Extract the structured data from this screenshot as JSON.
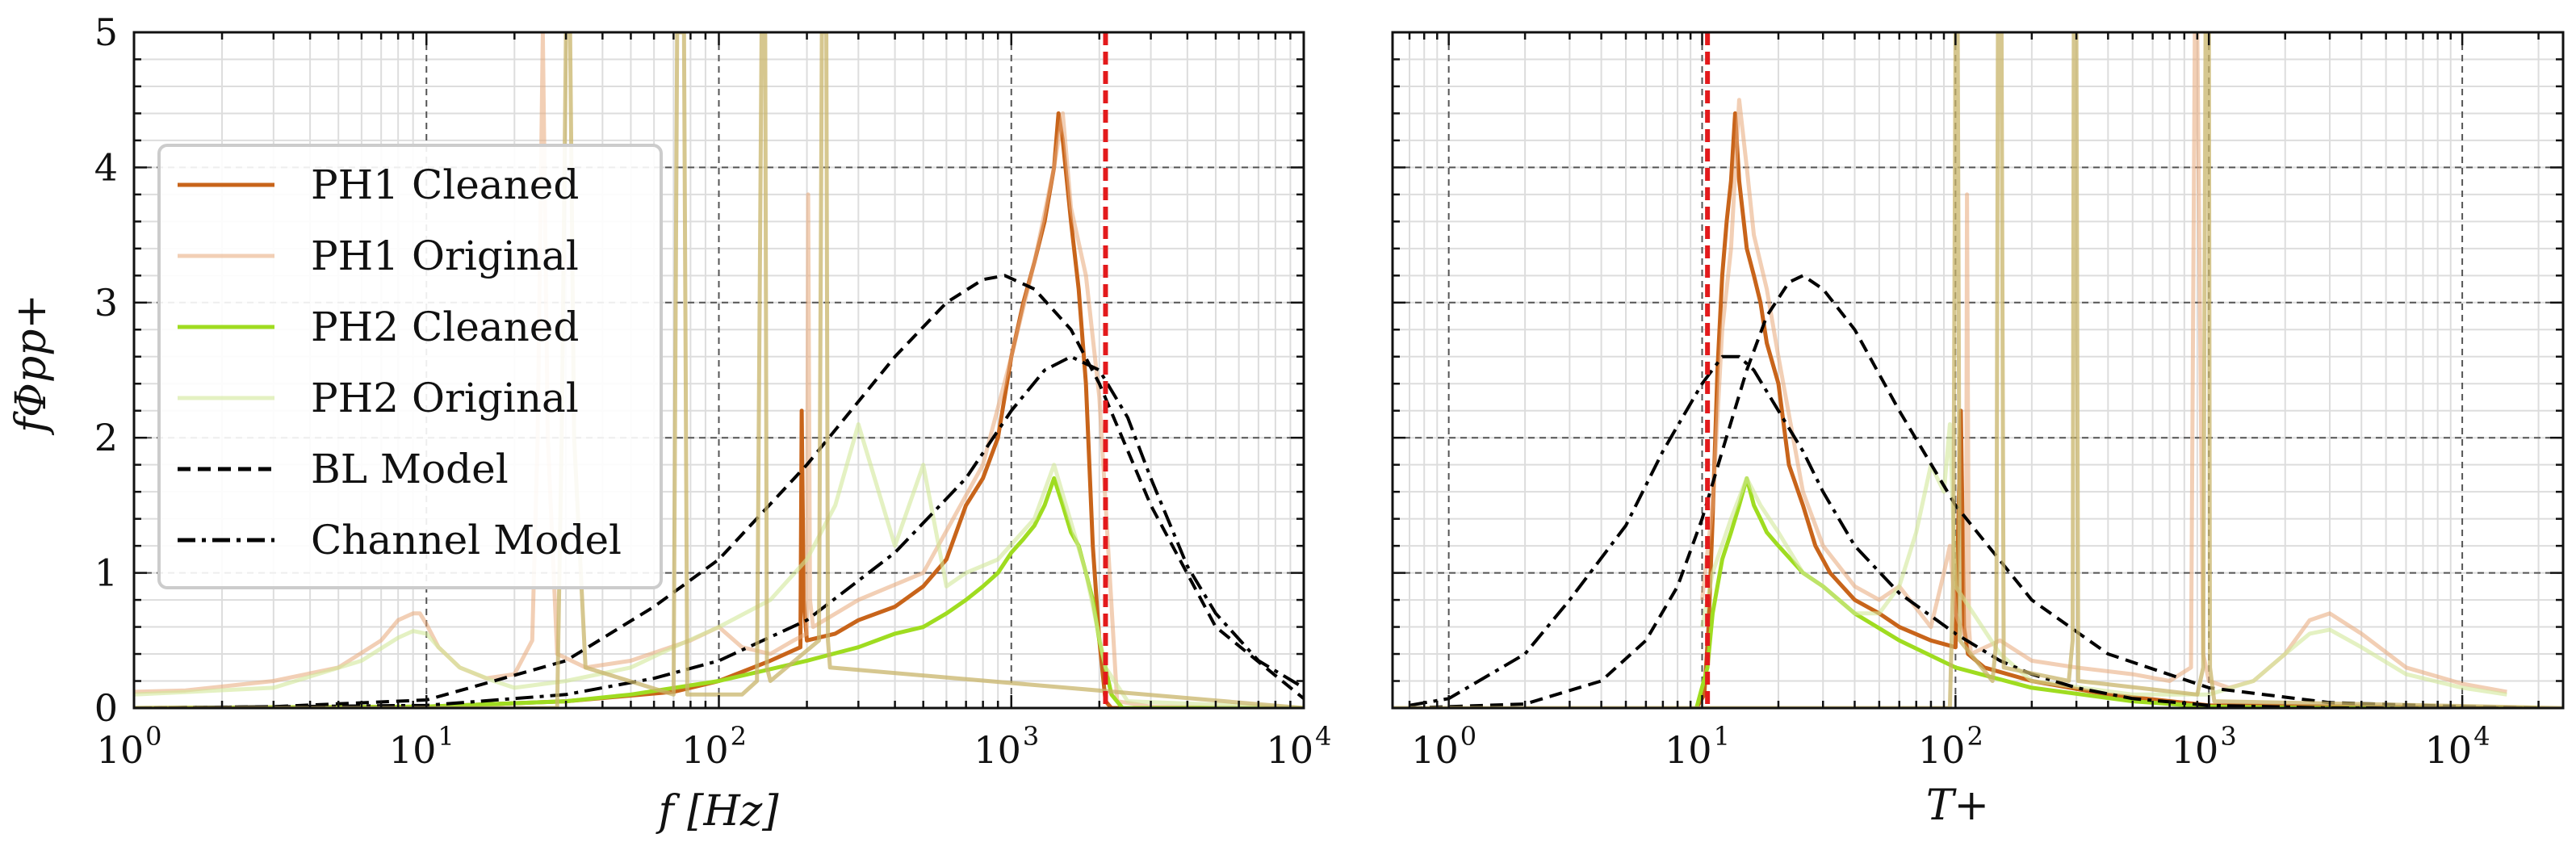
{
  "chart_data": [
    {
      "type": "line",
      "xscale": "log",
      "xlim": [
        1,
        10000
      ],
      "ylim": [
        0,
        5
      ],
      "xlabel": "f [Hz]",
      "ylabel": "fΦpp+",
      "xticks": [
        1,
        10,
        100,
        1000,
        10000
      ],
      "yticks": [
        0,
        1,
        2,
        3,
        4,
        5
      ],
      "grid": true,
      "cutoff_line": {
        "x": 2100,
        "color": "#e31a1c",
        "style": "dashed"
      },
      "legend": {
        "position": "left",
        "entries": [
          "PH1 Cleaned",
          "PH1 Original",
          "PH2 Cleaned",
          "PH2 Original",
          "BL Model",
          "Channel Model"
        ]
      },
      "series": [
        {
          "name": "PH1 Cleaned",
          "color": "#c8641a",
          "width": 5,
          "x": [
            1,
            10,
            30,
            70,
            100,
            150,
            190,
            192,
            195,
            200,
            250,
            300,
            400,
            500,
            600,
            700,
            800,
            900,
            1000,
            1100,
            1200,
            1300,
            1400,
            1450,
            1500,
            1600,
            1700,
            1800,
            1900,
            2000,
            2100,
            2200,
            2500,
            10000
          ],
          "y": [
            0,
            0.01,
            0.05,
            0.12,
            0.2,
            0.35,
            0.45,
            2.2,
            0.8,
            0.5,
            0.55,
            0.65,
            0.75,
            0.9,
            1.1,
            1.5,
            1.7,
            2.0,
            2.6,
            3.0,
            3.3,
            3.6,
            4.0,
            4.4,
            4.2,
            3.6,
            3.1,
            2.4,
            1.2,
            0.5,
            0.05,
            0.0,
            0.0,
            0.0
          ]
        },
        {
          "name": "PH1 Original",
          "color": "#e8a878",
          "width": 5,
          "opacity": 0.55,
          "x": [
            1,
            1.5,
            3,
            5,
            7,
            8,
            9,
            9.5,
            10,
            11,
            13,
            16,
            20,
            23,
            24,
            25,
            26,
            28,
            35,
            50,
            80,
            100,
            120,
            150,
            180,
            200,
            202,
            205,
            210,
            300,
            500,
            800,
            1000,
            1200,
            1400,
            1500,
            1600,
            1800,
            2000,
            2300,
            3000,
            10000
          ],
          "y": [
            0.12,
            0.13,
            0.2,
            0.3,
            0.5,
            0.65,
            0.7,
            0.7,
            0.62,
            0.45,
            0.3,
            0.22,
            0.25,
            0.5,
            2.0,
            5.0,
            2.0,
            0.4,
            0.3,
            0.35,
            0.5,
            0.6,
            0.45,
            0.4,
            0.5,
            0.55,
            3.8,
            0.8,
            0.6,
            0.8,
            1.0,
            1.8,
            2.6,
            3.3,
            4.0,
            4.4,
            3.7,
            3.2,
            2.3,
            0.05,
            0.01,
            0.0
          ]
        },
        {
          "name": "PH2 Cleaned",
          "color": "#9fdc20",
          "width": 5,
          "x": [
            1,
            10,
            30,
            50,
            100,
            200,
            300,
            400,
            500,
            600,
            700,
            800,
            900,
            1000,
            1100,
            1200,
            1300,
            1400,
            1500,
            1600,
            1700,
            1800,
            1900,
            2000,
            2100,
            2200,
            2400,
            10000
          ],
          "y": [
            0.0,
            0.01,
            0.05,
            0.1,
            0.2,
            0.35,
            0.45,
            0.55,
            0.6,
            0.7,
            0.8,
            0.9,
            1.0,
            1.15,
            1.25,
            1.35,
            1.5,
            1.7,
            1.5,
            1.3,
            1.2,
            1.0,
            0.8,
            0.5,
            0.3,
            0.1,
            0.0,
            0.0
          ]
        },
        {
          "name": "PH2 Original",
          "color": "#d2e89a",
          "width": 5,
          "opacity": 0.6,
          "x": [
            1,
            3,
            6,
            8,
            9,
            10,
            11,
            13,
            17,
            20,
            30,
            50,
            70,
            100,
            150,
            200,
            250,
            300,
            400,
            500,
            600,
            700,
            900,
            1200,
            1400,
            1800,
            2100,
            2500,
            10000
          ],
          "y": [
            0.1,
            0.15,
            0.35,
            0.52,
            0.57,
            0.55,
            0.45,
            0.3,
            0.2,
            0.15,
            0.2,
            0.3,
            0.45,
            0.6,
            0.8,
            1.1,
            1.5,
            2.1,
            1.2,
            1.8,
            0.9,
            1.0,
            1.1,
            1.4,
            1.8,
            1.0,
            0.3,
            0.05,
            0.0
          ]
        },
        {
          "name": "BL Model",
          "color": "#000000",
          "width": 4,
          "dash": "dashed",
          "x": [
            1,
            3,
            10,
            30,
            60,
            100,
            200,
            400,
            600,
            800,
            950,
            1200,
            1600,
            2000,
            3000,
            5000,
            10000
          ],
          "y": [
            0.0,
            0.01,
            0.06,
            0.35,
            0.75,
            1.1,
            1.8,
            2.6,
            3.0,
            3.17,
            3.2,
            3.1,
            2.8,
            2.4,
            1.5,
            0.6,
            0.07
          ]
        },
        {
          "name": "Channel Model",
          "color": "#000000",
          "width": 4,
          "dash": "dashdot",
          "x": [
            1,
            10,
            30,
            60,
            100,
            200,
            400,
            700,
            1000,
            1300,
            1600,
            2000,
            2500,
            3000,
            4000,
            5000,
            7000,
            10000
          ],
          "y": [
            0.0,
            0.02,
            0.1,
            0.22,
            0.35,
            0.65,
            1.15,
            1.7,
            2.2,
            2.5,
            2.6,
            2.5,
            2.15,
            1.7,
            1.05,
            0.7,
            0.35,
            0.15
          ]
        },
        {
          "name": "",
          "color": "#c8b46a",
          "width": 5,
          "opacity": 0.75,
          "x": [
            1,
            28,
            29,
            30,
            31,
            32,
            35,
            70,
            72,
            74,
            75,
            76,
            78,
            120,
            135,
            140,
            142,
            144,
            146,
            150,
            220,
            225,
            230,
            233,
            236,
            240,
            10000
          ],
          "y": [
            0,
            0,
            2.0,
            5.0,
            5.0,
            2.0,
            0.3,
            0.1,
            5.0,
            5.0,
            5.0,
            5.0,
            0.1,
            0.1,
            0.2,
            5.0,
            5.0,
            5.0,
            0.3,
            0.2,
            0.5,
            5.0,
            5.0,
            5.0,
            0.5,
            0.3,
            0
          ]
        }
      ]
    },
    {
      "type": "line",
      "xscale": "log",
      "xlim": [
        0.6,
        25000
      ],
      "ylim": [
        0,
        5
      ],
      "xlabel": "T+",
      "ylabel": "",
      "xticks": [
        1,
        10,
        100,
        1000,
        10000
      ],
      "yticks": [
        0,
        1,
        2,
        3,
        4,
        5
      ],
      "grid": true,
      "cutoff_line": {
        "x": 10.5,
        "color": "#e31a1c",
        "style": "dashed"
      },
      "series": [
        {
          "name": "PH1 Cleaned",
          "color": "#c8641a",
          "width": 5,
          "x": [
            9.5,
            10.2,
            10.6,
            11,
            11.5,
            12,
            12.5,
            13,
            13.5,
            14,
            15,
            16,
            17,
            18,
            20,
            22,
            25,
            28,
            32,
            40,
            50,
            60,
            80,
            100,
            105,
            108,
            112,
            130,
            200,
            400,
            1000,
            20000
          ],
          "y": [
            0.0,
            0.1,
            0.6,
            1.4,
            2.5,
            3.2,
            3.6,
            3.9,
            4.4,
            3.9,
            3.4,
            3.2,
            3.0,
            2.7,
            2.4,
            1.8,
            1.5,
            1.2,
            1.0,
            0.8,
            0.7,
            0.6,
            0.5,
            0.45,
            2.2,
            0.6,
            0.4,
            0.3,
            0.2,
            0.1,
            0.02,
            0.0
          ]
        },
        {
          "name": "PH1 Original",
          "color": "#e8a878",
          "width": 5,
          "opacity": 0.55,
          "x": [
            10,
            11,
            12,
            13,
            14,
            15,
            16,
            18,
            20,
            25,
            30,
            40,
            50,
            60,
            80,
            90,
            95,
            100,
            110,
            111,
            113,
            115,
            150,
            200,
            300,
            500,
            700,
            850,
            880,
            900,
            950,
            1000,
            1200,
            1500,
            2000,
            2500,
            3000,
            4000,
            6000,
            10000,
            15000
          ],
          "y": [
            0.8,
            1.5,
            2.8,
            3.4,
            4.5,
            4.0,
            3.5,
            3.1,
            2.6,
            1.6,
            1.2,
            0.9,
            0.8,
            0.9,
            0.6,
            1.0,
            1.2,
            0.7,
            0.5,
            3.8,
            0.6,
            0.4,
            0.5,
            0.35,
            0.3,
            0.25,
            0.2,
            0.3,
            5.0,
            5.0,
            0.4,
            0.2,
            0.15,
            0.2,
            0.4,
            0.65,
            0.7,
            0.55,
            0.3,
            0.18,
            0.12
          ]
        },
        {
          "name": "PH2 Cleaned",
          "color": "#9fdc20",
          "width": 5,
          "x": [
            9.5,
            10.5,
            11,
            12,
            13,
            14,
            15,
            16,
            17,
            18,
            20,
            25,
            30,
            40,
            60,
            100,
            200,
            500,
            1000,
            3000,
            20000
          ],
          "y": [
            0.0,
            0.3,
            0.7,
            1.1,
            1.3,
            1.5,
            1.7,
            1.5,
            1.4,
            1.3,
            1.2,
            1.0,
            0.9,
            0.7,
            0.5,
            0.3,
            0.15,
            0.05,
            0.01,
            0.0,
            0.0
          ]
        },
        {
          "name": "PH2 Original",
          "color": "#d2e89a",
          "width": 5,
          "opacity": 0.6,
          "x": [
            10,
            11,
            13,
            15,
            17,
            20,
            25,
            30,
            40,
            50,
            60,
            70,
            80,
            90,
            95,
            100,
            150,
            200,
            500,
            1000,
            1500,
            2000,
            2500,
            3000,
            4000,
            6000,
            10000,
            15000
          ],
          "y": [
            0.6,
            1.0,
            1.4,
            1.7,
            1.5,
            1.3,
            1.0,
            0.9,
            0.7,
            0.7,
            0.9,
            1.3,
            1.8,
            1.6,
            2.1,
            0.9,
            0.4,
            0.2,
            0.1,
            0.1,
            0.2,
            0.4,
            0.55,
            0.58,
            0.45,
            0.25,
            0.15,
            0.1
          ]
        },
        {
          "name": "BL Model",
          "color": "#000000",
          "width": 4,
          "dash": "dashed",
          "x": [
            0.7,
            2,
            4,
            6,
            8,
            10,
            12,
            15,
            18,
            22,
            25,
            30,
            40,
            60,
            100,
            200,
            400,
            1000,
            3000,
            10000,
            20000
          ],
          "y": [
            0.0,
            0.03,
            0.2,
            0.5,
            0.9,
            1.4,
            1.9,
            2.5,
            2.9,
            3.15,
            3.2,
            3.1,
            2.8,
            2.2,
            1.5,
            0.8,
            0.4,
            0.15,
            0.04,
            0.01,
            0.0
          ]
        },
        {
          "name": "Channel Model",
          "color": "#000000",
          "width": 4,
          "dash": "dashdot",
          "x": [
            0.7,
            1,
            2,
            3,
            5,
            7,
            10,
            12,
            14,
            16,
            20,
            25,
            30,
            40,
            60,
            100,
            150,
            200,
            300,
            500,
            1000,
            3000,
            20000
          ],
          "y": [
            0.02,
            0.07,
            0.4,
            0.8,
            1.35,
            1.9,
            2.4,
            2.6,
            2.6,
            2.5,
            2.2,
            1.9,
            1.6,
            1.2,
            0.85,
            0.55,
            0.35,
            0.25,
            0.15,
            0.07,
            0.02,
            0.0,
            0.0
          ]
        },
        {
          "name": "",
          "color": "#c8b46a",
          "width": 5,
          "opacity": 0.75,
          "x": [
            0.6,
            95,
            98,
            100,
            102,
            104,
            140,
            145,
            147,
            150,
            152,
            155,
            280,
            290,
            293,
            297,
            300,
            305,
            900,
            950,
            970,
            990,
            1000,
            1010,
            1050,
            25000
          ],
          "y": [
            0,
            0,
            1.0,
            5.0,
            5.0,
            0.5,
            0.2,
            0.5,
            5.0,
            5.0,
            5.0,
            0.3,
            0.2,
            0.5,
            5.0,
            5.0,
            5.0,
            0.2,
            0.1,
            0.3,
            5.0,
            5.0,
            5.0,
            0.3,
            0.05,
            0
          ]
        }
      ]
    }
  ]
}
